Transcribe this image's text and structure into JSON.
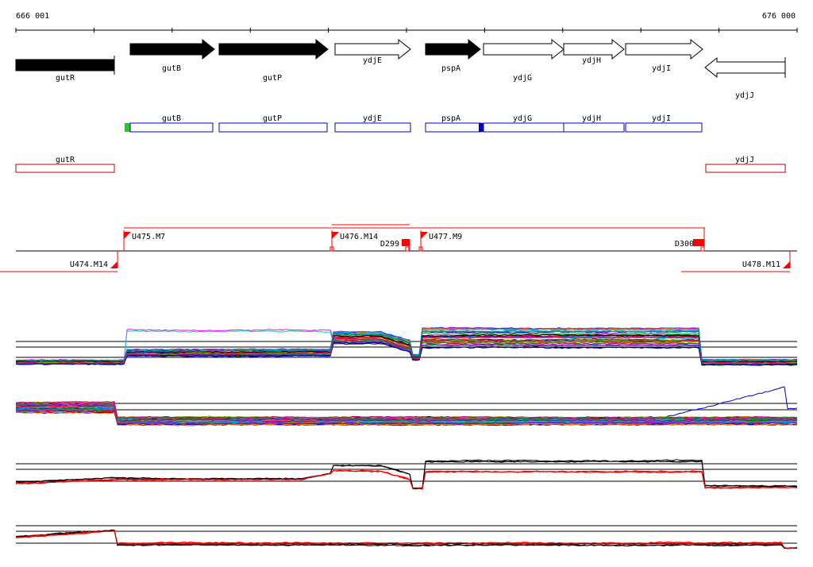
{
  "ruler": {
    "start_label": "666 001",
    "end_label": "676 000"
  },
  "gene_track": {
    "genes": [
      {
        "name": "gutR",
        "strand": "none",
        "fill": "#000000"
      },
      {
        "name": "gutB",
        "strand": "+",
        "fill": "#000000"
      },
      {
        "name": "gutP",
        "strand": "+",
        "fill": "#000000"
      },
      {
        "name": "ydjE",
        "strand": "+",
        "fill": "#ffffff"
      },
      {
        "name": "pspA",
        "strand": "+",
        "fill": "#000000"
      },
      {
        "name": "ydjG",
        "strand": "+",
        "fill": "#ffffff"
      },
      {
        "name": "ydjH",
        "strand": "+",
        "fill": "#ffffff"
      },
      {
        "name": "ydjI",
        "strand": "+",
        "fill": "#ffffff"
      },
      {
        "name": "ydjJ",
        "strand": "-",
        "fill": "#ffffff"
      }
    ]
  },
  "forward_track": {
    "color": "#0000cc",
    "boxes": [
      {
        "name": "gutB"
      },
      {
        "name": "gutP"
      },
      {
        "name": "ydjE"
      },
      {
        "name": "pspA"
      },
      {
        "name": "ydjG"
      },
      {
        "name": "ydjH"
      },
      {
        "name": "ydjI"
      }
    ],
    "markers": [
      {
        "color": "#22cc22"
      },
      {
        "color": "#0000cc"
      }
    ]
  },
  "reverse_track": {
    "color": "#cc0000",
    "boxes": [
      {
        "name": "gutR"
      },
      {
        "name": "ydjJ"
      }
    ]
  },
  "transcription_units": {
    "color": "#ff0000",
    "units": [
      {
        "name": "U474.M14"
      },
      {
        "name": "U475.M7"
      },
      {
        "name": "U476.M14"
      },
      {
        "name": "U477.M9"
      },
      {
        "name": "U478.M11"
      }
    ],
    "terminators": [
      {
        "name": "D299"
      },
      {
        "name": "D300"
      }
    ]
  },
  "expression_panels": [
    {
      "panel": "forward-all-conditions"
    },
    {
      "panel": "reverse-all-conditions"
    },
    {
      "panel": "forward-summary"
    },
    {
      "panel": "reverse-summary"
    }
  ],
  "palette": [
    "#ff00ff",
    "#00cccc",
    "#cc0000",
    "#0000cc",
    "#00aa00",
    "#ff8800",
    "#8800cc",
    "#000000",
    "#aaaa00",
    "#0088ff",
    "#cc0066",
    "#008866"
  ]
}
